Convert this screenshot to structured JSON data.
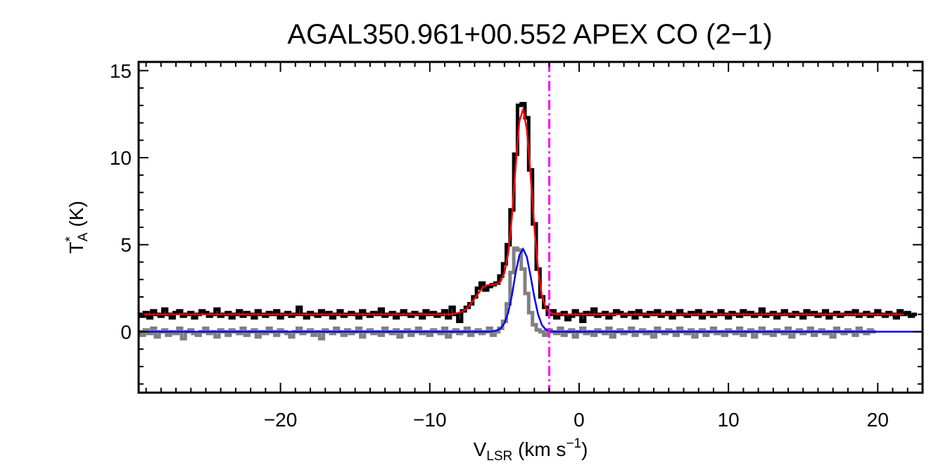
{
  "chart_data": {
    "type": "line",
    "title": "AGAL350.961+00.552  APEX CO (2−1)",
    "xlabel": {
      "main": "V",
      "sub": "LSR",
      "rest": " (km s",
      "sup": "−1",
      "close": ")"
    },
    "ylabel": {
      "main": "T",
      "sup": "*",
      "sub": "A",
      "rest": " (K)"
    },
    "xlim": [
      -29.5,
      23
    ],
    "ylim": [
      -3.5,
      15.5
    ],
    "xticks": [
      -20,
      -10,
      0,
      10,
      20
    ],
    "xtick_labels": [
      "−20",
      "−10",
      "0",
      "10",
      "20"
    ],
    "yticks": [
      0,
      5,
      10,
      15
    ],
    "ytick_labels": [
      "0",
      "5",
      "10",
      "15"
    ],
    "marker_velocity": -2.0,
    "colors": {
      "observed": "#000000",
      "residual": "#808080",
      "total_fit": "#ff0000",
      "component_fit": "#0000ff",
      "marker": "#ff00ff"
    },
    "series": [
      {
        "style": "step",
        "color": "#000000",
        "x0": -29.5,
        "dx": 0.25,
        "values": [
          1.0,
          0.9,
          1.1,
          0.8,
          1.2,
          1.0,
          0.9,
          1.3,
          1.0,
          0.8,
          1.1,
          1.2,
          0.9,
          1.0,
          1.1,
          0.8,
          1.0,
          1.2,
          1.1,
          0.9,
          1.0,
          1.3,
          0.9,
          1.0,
          1.1,
          0.8,
          1.0,
          1.2,
          0.9,
          1.1,
          1.0,
          0.8,
          1.2,
          1.0,
          0.9,
          1.1,
          1.0,
          1.2,
          0.8,
          1.0,
          1.1,
          0.9,
          1.0,
          1.4,
          1.0,
          0.8,
          1.1,
          1.0,
          0.9,
          1.2,
          1.0,
          1.1,
          0.8,
          1.0,
          1.2,
          0.9,
          1.0,
          1.1,
          1.0,
          0.8,
          1.2,
          1.0,
          0.9,
          1.1,
          1.0,
          1.3,
          0.9,
          1.0,
          1.1,
          0.8,
          1.0,
          1.2,
          1.0,
          0.9,
          1.1,
          1.0,
          0.8,
          1.2,
          1.0,
          1.1,
          0.9,
          1.0,
          1.2,
          0.8,
          1.4,
          1.0,
          0.6,
          1.2,
          1.4,
          1.6,
          2.0,
          2.5,
          2.8,
          2.4,
          2.6,
          2.7,
          2.8,
          3.2,
          3.9,
          5.0,
          7.0,
          10.2,
          13.0,
          13.1,
          12.3,
          9.3,
          6.2,
          3.6,
          2.0,
          1.4,
          1.0,
          1.2,
          0.8,
          1.0,
          1.1,
          0.7,
          0.9,
          1.2,
          1.0,
          0.6,
          1.1,
          1.0,
          1.3,
          0.9,
          1.0,
          1.1,
          0.8,
          1.0,
          1.2,
          1.1,
          0.9,
          1.0,
          1.1,
          0.8,
          1.2,
          1.0,
          0.9,
          1.1,
          1.0,
          1.2,
          0.9,
          1.0,
          1.1,
          0.8,
          1.0,
          1.2,
          1.0,
          0.9,
          1.1,
          1.0,
          1.2,
          0.8,
          1.0,
          1.1,
          0.9,
          1.0,
          1.2,
          1.0,
          0.8,
          1.1,
          1.0,
          0.9,
          1.2,
          1.0,
          1.1,
          0.9,
          1.0,
          1.3,
          0.9,
          1.0,
          1.1,
          0.8,
          1.0,
          1.2,
          1.0,
          0.9,
          1.1,
          1.0,
          0.8,
          1.2,
          1.0,
          1.1,
          0.9,
          1.0,
          1.2,
          0.8,
          1.0,
          1.1,
          0.9,
          1.0,
          1.1,
          1.0,
          1.2,
          0.9,
          1.0,
          1.1,
          0.9,
          1.0,
          1.2,
          1.0,
          0.9,
          1.1,
          1.0,
          0.8,
          1.2,
          1.0,
          1.1,
          0.9,
          1.0
        ]
      },
      {
        "style": "step",
        "color": "#808080",
        "x0": -29.5,
        "dx": 0.25,
        "values": [
          0.0,
          -0.2,
          0.1,
          -0.1,
          0.2,
          -0.3,
          0.0,
          0.1,
          -0.2,
          0.0,
          -0.1,
          0.2,
          -0.4,
          0.0,
          0.1,
          -0.1,
          -0.2,
          0.0,
          0.2,
          -0.1,
          0.0,
          -0.3,
          0.1,
          0.0,
          -0.2,
          0.1,
          0.0,
          -0.1,
          0.2,
          -0.2,
          0.0,
          0.1,
          -0.3,
          0.0,
          -0.1,
          0.2,
          0.0,
          -0.2,
          0.1,
          0.0,
          -0.1,
          -0.3,
          0.0,
          0.2,
          -0.1,
          0.0,
          0.1,
          -0.2,
          0.0,
          -0.4,
          0.1,
          0.0,
          -0.1,
          0.2,
          0.0,
          -0.2,
          0.1,
          -0.1,
          0.0,
          0.2,
          -0.3,
          0.0,
          0.1,
          -0.1,
          0.0,
          -0.2,
          0.2,
          0.0,
          -0.1,
          0.1,
          -0.3,
          0.0,
          0.1,
          -0.2,
          0.0,
          0.2,
          -0.1,
          0.0,
          -0.2,
          0.1,
          0.0,
          -0.1,
          0.2,
          -0.3,
          0.0,
          0.1,
          -0.1,
          0.0,
          0.2,
          -0.2,
          0.0,
          0.1,
          -0.1,
          0.0,
          0.2,
          -0.2,
          0.0,
          0.2,
          0.6,
          1.6,
          3.4,
          4.8,
          4.7,
          3.6,
          2.2,
          1.1,
          0.4,
          0.1,
          0.0,
          -0.2,
          0.1,
          0.0,
          -0.1,
          0.2,
          -0.2,
          0.0,
          0.1,
          -0.3,
          0.0,
          0.2,
          -0.1,
          0.0,
          -0.2,
          0.1,
          0.0,
          -0.1,
          0.2,
          -0.3,
          0.0,
          0.1,
          -0.1,
          0.0,
          0.2,
          -0.2,
          0.0,
          0.1,
          -0.1,
          0.0,
          -0.3,
          0.2,
          0.0,
          -0.1,
          0.1,
          0.0,
          -0.2,
          0.2,
          0.0,
          -0.1,
          0.1,
          -0.3,
          0.0,
          0.1,
          -0.2,
          0.0,
          0.2,
          -0.1,
          0.0,
          -0.2,
          0.1,
          0.0,
          -0.1,
          0.2,
          -0.2,
          0.0,
          0.1,
          -0.3,
          0.0,
          0.2,
          -0.1,
          0.0,
          -0.2,
          0.1,
          0.0,
          -0.1,
          0.2,
          -0.3,
          0.0,
          0.1,
          -0.1,
          0.0,
          0.2,
          -0.2,
          0.0,
          0.1,
          -0.1,
          0.0,
          -0.3,
          0.2,
          0.0,
          -0.1,
          0.1,
          0.0,
          -0.2,
          0.2,
          0.0,
          -0.1,
          0.1,
          0.0
        ]
      },
      {
        "style": "line",
        "color": "#ff0000",
        "x0": -29.5,
        "dx": 0.25,
        "values": [
          1.0,
          1.0,
          1.0,
          1.0,
          1.0,
          1.0,
          1.0,
          1.0,
          1.0,
          1.0,
          1.0,
          1.0,
          1.0,
          1.0,
          1.0,
          1.0,
          1.0,
          1.0,
          1.0,
          1.0,
          1.0,
          1.0,
          1.0,
          1.0,
          1.0,
          1.0,
          1.0,
          1.0,
          1.0,
          1.0,
          1.0,
          1.0,
          1.0,
          1.0,
          1.0,
          1.0,
          1.0,
          1.0,
          1.0,
          1.0,
          1.0,
          1.0,
          1.0,
          1.0,
          1.0,
          1.0,
          1.0,
          1.0,
          1.0,
          1.0,
          1.0,
          1.0,
          1.0,
          1.0,
          1.0,
          1.0,
          1.0,
          1.0,
          1.0,
          1.0,
          1.0,
          1.0,
          1.0,
          1.0,
          1.0,
          1.0,
          1.0,
          1.0,
          1.0,
          1.0,
          1.0,
          1.0,
          1.0,
          1.0,
          1.0,
          1.0,
          1.0,
          1.0,
          1.0,
          1.0,
          1.0,
          1.0,
          1.0,
          1.0,
          1.02,
          1.05,
          1.1,
          1.2,
          1.35,
          1.6,
          1.9,
          2.2,
          2.5,
          2.65,
          2.7,
          2.7,
          2.75,
          2.9,
          3.4,
          4.5,
          6.6,
          9.5,
          12.1,
          12.8,
          11.6,
          9.0,
          6.0,
          3.6,
          2.1,
          1.4,
          1.12,
          1.03,
          1.01,
          1.0,
          1.0,
          1.0,
          1.0,
          1.0,
          1.0,
          1.0,
          1.0,
          1.0,
          1.0,
          1.0,
          1.0,
          1.0,
          1.0,
          1.0,
          1.0,
          1.0,
          1.0,
          1.0,
          1.0,
          1.0,
          1.0,
          1.0,
          1.0,
          1.0,
          1.0,
          1.0,
          1.0,
          1.0,
          1.0,
          1.0,
          1.0,
          1.0,
          1.0,
          1.0,
          1.0,
          1.0,
          1.0,
          1.0,
          1.0,
          1.0,
          1.0,
          1.0,
          1.0,
          1.0,
          1.0,
          1.0,
          1.0,
          1.0,
          1.0,
          1.0,
          1.0,
          1.0,
          1.0,
          1.0,
          1.0,
          1.0,
          1.0,
          1.0,
          1.0,
          1.0,
          1.0,
          1.0,
          1.0,
          1.0,
          1.0,
          1.0,
          1.0,
          1.0,
          1.0,
          1.0,
          1.0,
          1.0,
          1.0,
          1.0,
          1.0,
          1.0,
          1.0,
          1.0,
          1.0,
          1.0,
          1.0,
          1.0,
          1.0,
          1.0,
          1.0,
          1.0,
          1.0,
          1.0,
          1.0,
          1.0,
          1.0,
          1.0
        ]
      },
      {
        "style": "line",
        "color": "#0000ff",
        "x0": -29.5,
        "dx": 0.25,
        "values": [
          0.0,
          0.0,
          0.0,
          0.0,
          0.0,
          0.0,
          0.0,
          0.0,
          0.0,
          0.0,
          0.0,
          0.0,
          0.0,
          0.0,
          0.0,
          0.0,
          0.0,
          0.0,
          0.0,
          0.0,
          0.0,
          0.0,
          0.0,
          0.0,
          0.0,
          0.0,
          0.0,
          0.0,
          0.0,
          0.0,
          0.0,
          0.0,
          0.0,
          0.0,
          0.0,
          0.0,
          0.0,
          0.0,
          0.0,
          0.0,
          0.0,
          0.0,
          0.0,
          0.0,
          0.0,
          0.0,
          0.0,
          0.0,
          0.0,
          0.0,
          0.0,
          0.0,
          0.0,
          0.0,
          0.0,
          0.0,
          0.0,
          0.0,
          0.0,
          0.0,
          0.0,
          0.0,
          0.0,
          0.0,
          0.0,
          0.0,
          0.0,
          0.0,
          0.0,
          0.0,
          0.0,
          0.0,
          0.0,
          0.0,
          0.0,
          0.0,
          0.0,
          0.0,
          0.0,
          0.0,
          0.0,
          0.0,
          0.0,
          0.0,
          0.0,
          0.0,
          0.0,
          0.0,
          0.0,
          0.0,
          0.0,
          0.0,
          0.0,
          0.0,
          0.01,
          0.03,
          0.08,
          0.2,
          0.5,
          1.1,
          2.1,
          3.4,
          4.4,
          4.75,
          4.3,
          3.2,
          2.0,
          1.0,
          0.4,
          0.13,
          0.04,
          0.01,
          0.0,
          0.0,
          0.0,
          0.0,
          0.0,
          0.0,
          0.0,
          0.0,
          0.0,
          0.0,
          0.0,
          0.0,
          0.0,
          0.0,
          0.0,
          0.0,
          0.0,
          0.0,
          0.0,
          0.0,
          0.0,
          0.0,
          0.0,
          0.0,
          0.0,
          0.0,
          0.0,
          0.0,
          0.0,
          0.0,
          0.0,
          0.0,
          0.0,
          0.0,
          0.0,
          0.0,
          0.0,
          0.0,
          0.0,
          0.0,
          0.0,
          0.0,
          0.0,
          0.0,
          0.0,
          0.0,
          0.0,
          0.0,
          0.0,
          0.0,
          0.0,
          0.0,
          0.0,
          0.0,
          0.0,
          0.0,
          0.0,
          0.0,
          0.0,
          0.0,
          0.0,
          0.0,
          0.0,
          0.0,
          0.0,
          0.0,
          0.0,
          0.0,
          0.0,
          0.0,
          0.0,
          0.0,
          0.0,
          0.0,
          0.0,
          0.0,
          0.0,
          0.0,
          0.0,
          0.0,
          0.0,
          0.0,
          0.0,
          0.0,
          0.0,
          0.0,
          0.0,
          0.0,
          0.0,
          0.0,
          0.0,
          0.0,
          0.0,
          0.0,
          0.0,
          0.0,
          0.0,
          0.0,
          0.0,
          0.0
        ]
      }
    ],
    "grid": false
  }
}
